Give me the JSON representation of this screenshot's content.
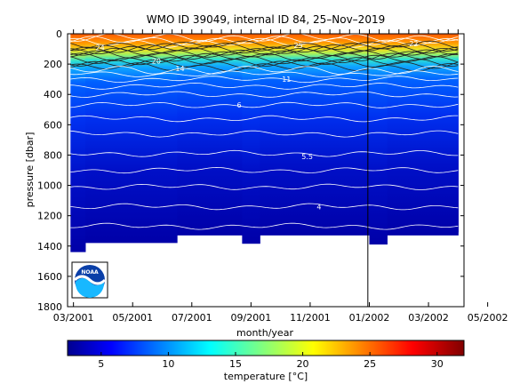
{
  "chart_data": {
    "type": "heatmap",
    "title": "WMO ID 39049, internal ID 84, 25–Nov–2019",
    "xlabel": "month/year",
    "ylabel": "pressure [dbar]",
    "x_tick_labels": [
      "03/2001",
      "05/2001",
      "07/2001",
      "09/2001",
      "11/2001",
      "01/2002",
      "03/2002",
      "05/2002"
    ],
    "y_ticks": [
      0,
      200,
      400,
      600,
      800,
      1000,
      1200,
      1400,
      1600,
      1800
    ],
    "y_tick_labels": [
      "0",
      "200",
      "400",
      "600",
      "800",
      "1000",
      "1200",
      "1400",
      "1600",
      "1800"
    ],
    "ylim": [
      1800,
      0
    ],
    "y_reversed": true,
    "contour_labels": [
      {
        "text": "24",
        "month": 3.9,
        "pressure": 90
      },
      {
        "text": "20",
        "month": 5.8,
        "pressure": 180
      },
      {
        "text": "14",
        "month": 6.6,
        "pressure": 230
      },
      {
        "text": "11",
        "month": 10.2,
        "pressure": 300
      },
      {
        "text": "25",
        "month": 10.6,
        "pressure": 75
      },
      {
        "text": "22",
        "month": 14.5,
        "pressure": 65
      },
      {
        "text": "6",
        "month": 8.6,
        "pressure": 470
      },
      {
        "text": "5.5",
        "month": 10.9,
        "pressure": 810
      },
      {
        "text": "4",
        "month": 11.3,
        "pressure": 1140
      }
    ],
    "profile_bottom": [
      {
        "month": 2.9,
        "pressure": 1440
      },
      {
        "month": 3.4,
        "pressure": 1380
      },
      {
        "month": 6.5,
        "pressure": 1330
      },
      {
        "month": 8.7,
        "pressure": 1385
      },
      {
        "month": 9.3,
        "pressure": 1330
      },
      {
        "month": 13.0,
        "pressure": 1390
      },
      {
        "month": 13.6,
        "pressure": 1330
      },
      {
        "month": 16.0,
        "pressure": 1310
      }
    ],
    "vertical_marker_month": 12.95,
    "colorbar": {
      "label": "temperature [°C]",
      "range": [
        2.5,
        32
      ],
      "tick_labels": [
        "5",
        "10",
        "15",
        "20",
        "25",
        "30"
      ],
      "ticks": [
        5,
        10,
        15,
        20,
        25,
        30
      ]
    },
    "grid": false,
    "legend": "none"
  },
  "logo": {
    "text": "NOAA"
  }
}
